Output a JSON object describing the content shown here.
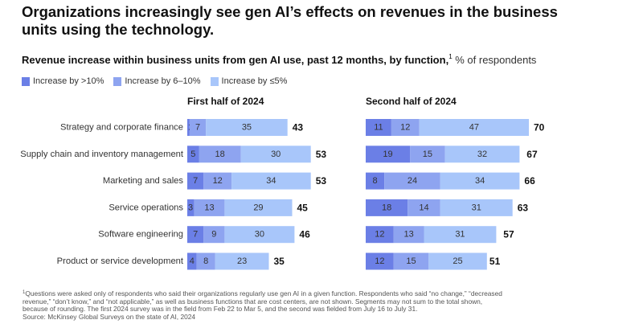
{
  "title": "Organizations increasingly see gen AI’s effects on revenues in the business units using the technology.",
  "subtitle": {
    "bold": "Revenue increase within business units from gen AI use, past 12 months, by function,",
    "footnote_mark": "1",
    "unit": " % of respondents"
  },
  "legend": [
    {
      "label": "Increase by >10%",
      "color": "#6b7fe6"
    },
    {
      "label": "Increase by 6–10%",
      "color": "#8ea4f0"
    },
    {
      "label": "Increase by ≤5%",
      "color": "#a8c6fa"
    }
  ],
  "chart_data": [
    {
      "type": "bar",
      "orientation": "horizontal",
      "stacked": true,
      "title": "First half of 2024",
      "categories": [
        "Strategy and corporate finance",
        "Supply chain and inventory management",
        "Marketing and sales",
        "Service operations",
        "Software engineering",
        "Product or service development"
      ],
      "series": [
        {
          "name": "Increase by >10%",
          "values": [
            1,
            5,
            7,
            3,
            7,
            4
          ]
        },
        {
          "name": "Increase by 6–10%",
          "values": [
            7,
            18,
            12,
            13,
            9,
            8
          ]
        },
        {
          "name": "Increase by ≤5%",
          "values": [
            35,
            30,
            34,
            29,
            30,
            23
          ]
        }
      ],
      "totals": [
        43,
        53,
        53,
        45,
        46,
        35
      ],
      "xlabel": "",
      "ylabel": "",
      "unit": "% of respondents"
    },
    {
      "type": "bar",
      "orientation": "horizontal",
      "stacked": true,
      "title": "Second half of 2024",
      "categories": [
        "Strategy and corporate finance",
        "Supply chain and inventory management",
        "Marketing and sales",
        "Service operations",
        "Software engineering",
        "Product or service development"
      ],
      "series": [
        {
          "name": "Increase by >10%",
          "values": [
            11,
            19,
            8,
            18,
            12,
            12
          ]
        },
        {
          "name": "Increase by 6–10%",
          "values": [
            12,
            15,
            24,
            14,
            13,
            15
          ]
        },
        {
          "name": "Increase by ≤5%",
          "values": [
            47,
            32,
            34,
            31,
            31,
            25
          ]
        }
      ],
      "totals": [
        70,
        67,
        66,
        63,
        57,
        51
      ],
      "xlabel": "",
      "ylabel": "",
      "unit": "% of respondents"
    }
  ],
  "footnote": {
    "mark": "1",
    "lines": [
      "Questions were asked only of respondents who said their organizations regularly use gen AI in a given function. Respondents who said “no change,” “decreased",
      "revenue,” “don’t know,” and “not applicable,” as well as business functions that are cost centers, are not shown. Segments may not sum to the total shown,",
      "because of rounding. The first 2024 survey was in the field from Feb 22 to Mar 5, and the second was fielded from July 16 to July 31.",
      "Source: McKinsey Global Surveys on the state of AI, 2024"
    ]
  }
}
